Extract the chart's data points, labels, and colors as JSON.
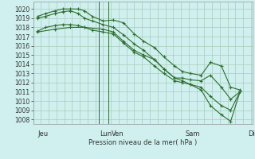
{
  "bg_color": "#cff0ee",
  "grid_color": "#aaccbb",
  "line_color": "#2d6e2d",
  "ylabel_text": "Pression niveau de la mer( hPa )",
  "ylim": [
    1007.5,
    1020.8
  ],
  "yticks": [
    1008,
    1009,
    1010,
    1011,
    1012,
    1013,
    1014,
    1015,
    1016,
    1017,
    1018,
    1019,
    1020
  ],
  "day_labels": [
    "Jeu",
    "Lun",
    "Ven",
    "Sam",
    "Dim"
  ],
  "day_positions": [
    0.0,
    4.0,
    4.75,
    9.5,
    13.5
  ],
  "vlines": [
    3.9,
    4.55
  ],
  "series1": {
    "x": [
      0.0,
      0.5,
      1.1,
      1.6,
      2.1,
      2.6,
      3.0,
      3.5,
      4.2,
      4.85,
      5.5,
      6.2,
      6.8,
      7.5,
      8.1,
      8.8,
      9.3,
      9.8,
      10.5,
      11.1,
      11.8,
      12.4,
      13.0
    ],
    "y": [
      1019.2,
      1019.5,
      1019.8,
      1020.0,
      1020.0,
      1020.0,
      1019.8,
      1019.2,
      1018.7,
      1018.8,
      1018.5,
      1017.3,
      1016.5,
      1015.8,
      1014.8,
      1013.8,
      1013.2,
      1013.0,
      1012.8,
      1014.2,
      1013.8,
      1011.5,
      1011.2
    ]
  },
  "series2": {
    "x": [
      0.0,
      0.5,
      1.1,
      1.6,
      2.1,
      2.6,
      3.0,
      3.5,
      4.2,
      4.85,
      5.5,
      6.2,
      6.8,
      7.5,
      8.1,
      8.8,
      9.3,
      9.8,
      10.5,
      11.1,
      11.8,
      12.4,
      13.0
    ],
    "y": [
      1019.0,
      1019.2,
      1019.5,
      1019.7,
      1019.8,
      1019.5,
      1019.0,
      1018.7,
      1018.3,
      1018.0,
      1017.2,
      1016.2,
      1015.5,
      1014.5,
      1013.5,
      1012.5,
      1012.5,
      1012.3,
      1012.2,
      1012.8,
      1011.5,
      1010.2,
      1011.0
    ]
  },
  "series3": {
    "x": [
      0.0,
      0.5,
      1.1,
      1.6,
      2.1,
      2.6,
      3.0,
      3.5,
      4.2,
      4.85,
      5.5,
      6.2,
      6.8,
      7.5,
      8.1,
      8.8,
      9.3,
      9.8,
      10.5,
      11.1,
      11.8,
      12.4,
      13.0
    ],
    "y": [
      1017.6,
      1018.0,
      1018.2,
      1018.3,
      1018.3,
      1018.2,
      1018.0,
      1017.7,
      1017.5,
      1017.3,
      1016.3,
      1015.3,
      1014.8,
      1013.8,
      1013.0,
      1012.2,
      1012.0,
      1011.8,
      1011.5,
      1010.5,
      1009.5,
      1009.0,
      1011.0
    ]
  },
  "series4": {
    "x": [
      0.0,
      1.1,
      2.1,
      3.0,
      4.2,
      4.85,
      5.5,
      6.2,
      6.8,
      7.5,
      8.1,
      8.8,
      9.3,
      9.8,
      10.5,
      11.1,
      11.8,
      12.4,
      13.0
    ],
    "y": [
      1017.5,
      1017.8,
      1018.0,
      1018.0,
      1017.8,
      1017.5,
      1016.5,
      1015.5,
      1015.0,
      1014.5,
      1013.5,
      1012.5,
      1012.2,
      1011.8,
      1011.2,
      1009.5,
      1008.5,
      1007.8,
      1011.0
    ]
  }
}
